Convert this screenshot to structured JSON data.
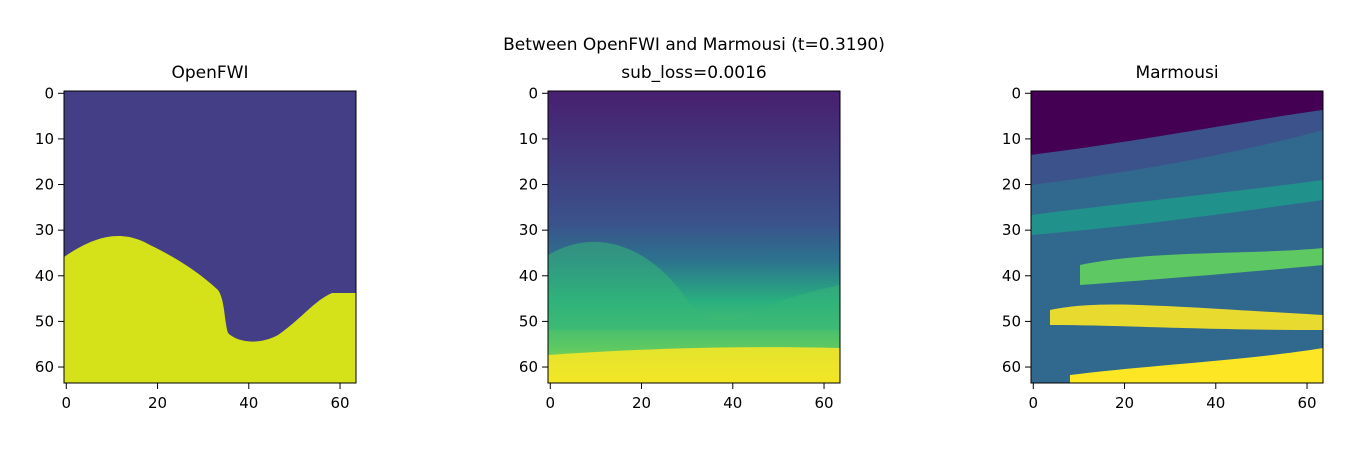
{
  "figure": {
    "suptitle": "Between OpenFWI and Marmousi (t=0.3190)"
  },
  "chart_data": [
    {
      "type": "heatmap",
      "title": "OpenFWI",
      "x_ticks": [
        "0",
        "20",
        "40",
        "60"
      ],
      "y_ticks": [
        "0",
        "10",
        "20",
        "30",
        "40",
        "50",
        "60"
      ],
      "xlim": [
        -0.5,
        63.5
      ],
      "ylim": [
        63.5,
        -0.5
      ],
      "colormap": "viridis",
      "palette": {
        "background": "#433e85",
        "layer": "#d5e21a"
      }
    },
    {
      "type": "heatmap",
      "title": "sub_loss=0.0016",
      "x_ticks": [
        "0",
        "20",
        "40",
        "60"
      ],
      "y_ticks": [
        "0",
        "10",
        "20",
        "30",
        "40",
        "50",
        "60"
      ],
      "xlim": [
        -0.5,
        63.5
      ],
      "ylim": [
        63.5,
        -0.5
      ],
      "colormap": "viridis",
      "palette": {
        "top": "#481f70",
        "mid": "#3b528b",
        "green": "#35b779",
        "bright": "#fde725"
      }
    },
    {
      "type": "heatmap",
      "title": "Marmousi",
      "x_ticks": [
        "0",
        "20",
        "40",
        "60"
      ],
      "y_ticks": [
        "0",
        "10",
        "20",
        "30",
        "40",
        "50",
        "60"
      ],
      "xlim": [
        -0.5,
        63.5
      ],
      "ylim": [
        63.5,
        -0.5
      ],
      "colormap": "viridis",
      "palette": {
        "top": "#440154",
        "mid": "#31688e",
        "teal": "#21918c",
        "green": "#5ec962",
        "bright": "#fde725"
      }
    }
  ]
}
